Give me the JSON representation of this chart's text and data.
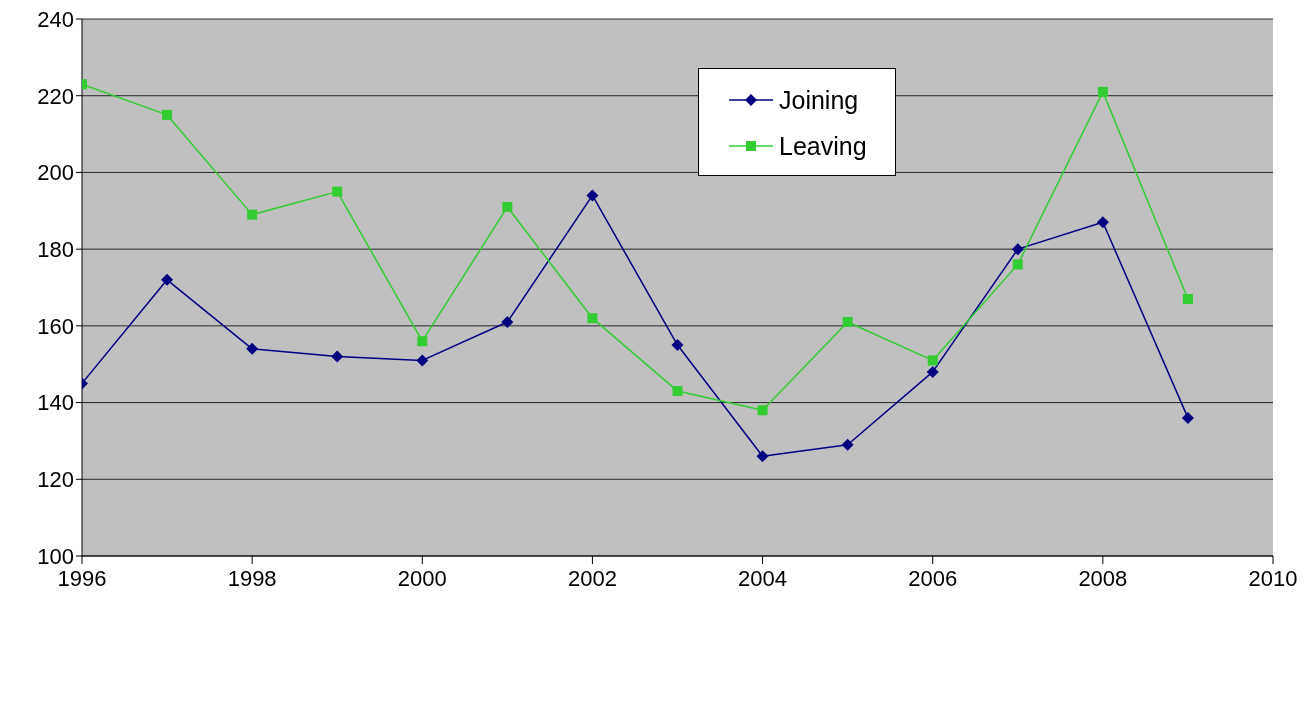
{
  "chart_data": {
    "type": "line",
    "x": [
      1996,
      1997,
      1998,
      1999,
      2000,
      2001,
      2002,
      2003,
      2004,
      2005,
      2006,
      2007,
      2008,
      2009
    ],
    "series": [
      {
        "name": "Joining",
        "color": "#000080",
        "marker": "diamond",
        "values": [
          145,
          172,
          154,
          152,
          151,
          161,
          194,
          155,
          126,
          129,
          148,
          180,
          187,
          136
        ]
      },
      {
        "name": "Leaving",
        "color": "#33cc33",
        "marker": "square",
        "values": [
          223,
          215,
          189,
          195,
          156,
          191,
          162,
          143,
          138,
          161,
          151,
          176,
          221,
          167
        ]
      }
    ],
    "xlim": [
      1996,
      2010
    ],
    "xticks": [
      1996,
      1998,
      2000,
      2002,
      2004,
      2006,
      2008,
      2010
    ],
    "ylim": [
      100,
      240
    ],
    "yticks": [
      100,
      120,
      140,
      160,
      180,
      200,
      220,
      240
    ],
    "grid": "y",
    "legend": "top right"
  }
}
